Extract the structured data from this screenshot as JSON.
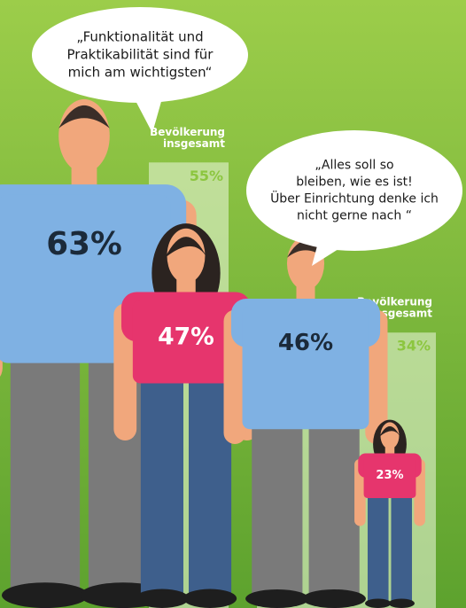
{
  "chart_data": [
    {
      "type": "pictogram",
      "title": [
        "„Funktionalität und",
        "Praktikabilität sind für",
        "mich am wichtigsten“"
      ],
      "values": [
        63,
        47
      ],
      "value_labels": [
        "63%",
        "47%"
      ],
      "reference_label": [
        "Bevölkerung",
        "insgesamt"
      ],
      "reference_value": 55,
      "reference_value_label": "55%"
    },
    {
      "type": "pictogram",
      "title": [
        "„Alles soll so",
        "bleiben, wie es ist!",
        "Über Einrichtung denke ich",
        "nicht gerne nach “"
      ],
      "values": [
        46,
        23
      ],
      "value_labels": [
        "46%",
        "23%"
      ],
      "reference_label": [
        "Bevölkerung",
        "insgesamt"
      ],
      "reference_value": 34,
      "reference_value_label": "34%"
    }
  ]
}
